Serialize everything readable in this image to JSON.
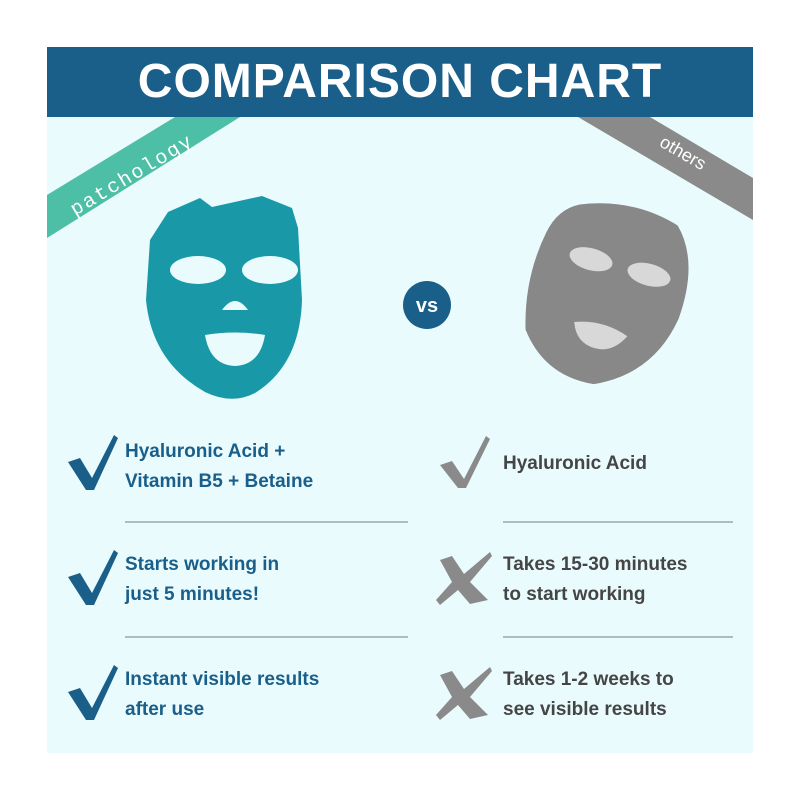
{
  "header": {
    "title": "COMPARISON CHART"
  },
  "left": {
    "brand": "patchology"
  },
  "right": {
    "brand": "others"
  },
  "vs": "vs",
  "rows": [
    {
      "left": [
        "Hyaluronic Acid +",
        "Vitamin B5 + Betaine"
      ],
      "right": [
        "Hyaluronic Acid"
      ]
    },
    {
      "left": [
        "Starts working in",
        "just 5 minutes!"
      ],
      "right": [
        "Takes 15-30 minutes",
        "to start working"
      ]
    },
    {
      "left": [
        "Instant visible results",
        "after use"
      ],
      "right": [
        "Takes 1-2 weeks to",
        "see visible results"
      ]
    }
  ]
}
